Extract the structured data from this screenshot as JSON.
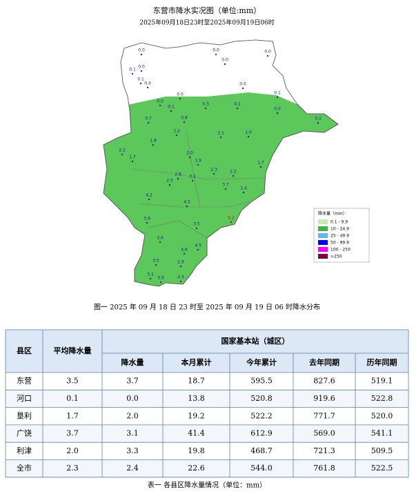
{
  "map": {
    "title": "东营市降水实况图（单位:mm）",
    "subtitle": "2025年09月18日23时至2025年09月19日06时",
    "stations": [
      "0.0",
      "0.0",
      "0.0",
      "0.0",
      "0.0",
      "0.1",
      "0.1",
      "0.4",
      "0.0",
      "0.0",
      "0.1",
      "0.0",
      "0.1",
      "0.3",
      "0.1",
      "0.0",
      "0.7",
      "0.2",
      "0.8",
      "1.2",
      "1.1",
      "1.0",
      "1.8",
      "2.2",
      "2.0",
      "1.7",
      "1.9",
      "1.7",
      "2.3",
      "2.2",
      "2.8",
      "2.5",
      "3.1",
      "3.7",
      "1.4",
      "4.2",
      "4.5",
      "3.9",
      "3.5",
      "5.2",
      "3.6",
      "4.6",
      "4.5",
      "3.5",
      "2.9",
      "3.1",
      "3.9",
      "4.3"
    ],
    "legend": {
      "title": "降水量（mm）",
      "items": [
        {
          "label": "0.1 - 9.9",
          "color": "#c8eab4"
        },
        {
          "label": "10 - 24.9",
          "color": "#3db646"
        },
        {
          "label": "25 - 49.9",
          "color": "#62b6f4"
        },
        {
          "label": "50 - 99.9",
          "color": "#0000fe"
        },
        {
          "label": "100 - 250",
          "color": "#fa00fa"
        },
        {
          "label": ">250",
          "color": "#7f0040"
        }
      ]
    },
    "caption": "图一 2025 年 09 月 18 日 23 时至 2025 年 09 月 19 日 06 时降水分布"
  },
  "table": {
    "header": [
      "县区",
      "平均降水量",
      "国家基本站（城区）"
    ],
    "subheader": [
      "降水量",
      "本月累计",
      "今年累计",
      "去年同期",
      "历年同期"
    ],
    "rows": [
      [
        "东营",
        "3.5",
        "3.7",
        "18.7",
        "595.5",
        "827.6",
        "519.1"
      ],
      [
        "河口",
        "0.1",
        "0.0",
        "13.8",
        "520.8",
        "919.6",
        "522.8"
      ],
      [
        "垦利",
        "1.7",
        "2.0",
        "19.2",
        "522.2",
        "771.7",
        "520.0"
      ],
      [
        "广饶",
        "3.7",
        "3.1",
        "41.4",
        "612.9",
        "569.0",
        "541.1"
      ],
      [
        "利津",
        "2.0",
        "3.3",
        "19.8",
        "468.7",
        "721.3",
        "509.5"
      ],
      [
        "全市",
        "2.3",
        "2.4",
        "22.6",
        "544.0",
        "761.8",
        "522.5"
      ]
    ],
    "caption": "表一 各县区降水量情况（单位：mm）"
  }
}
